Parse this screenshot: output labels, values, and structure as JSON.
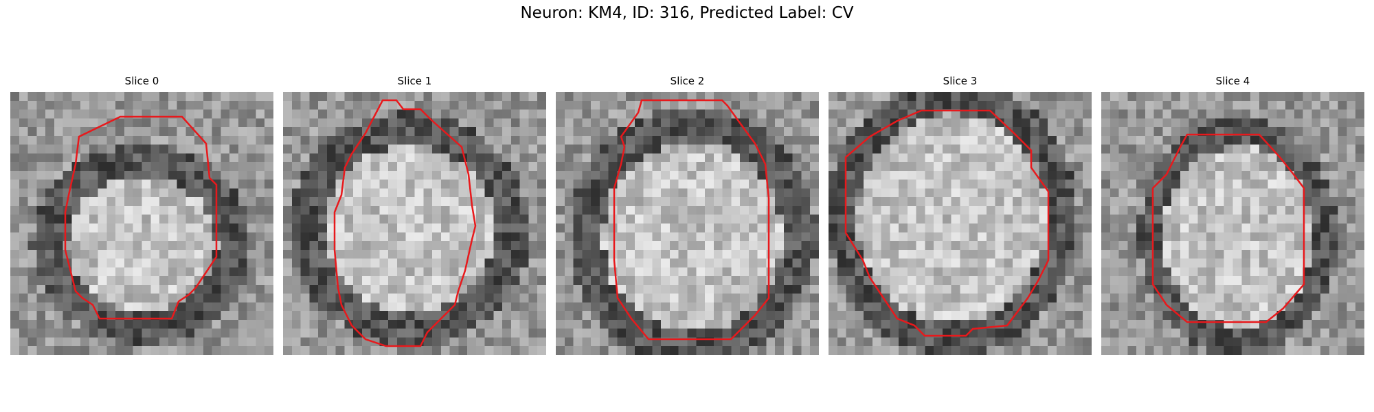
{
  "figure": {
    "title": "Neuron: KM4, ID: 316, Predicted Label: CV"
  },
  "colormap": "gray",
  "outline_color": "#e8191c",
  "panels": [
    {
      "title": "Slice 0"
    },
    {
      "title": "Slice 1"
    },
    {
      "title": "Slice 2"
    },
    {
      "title": "Slice 3"
    },
    {
      "title": "Slice 4"
    }
  ]
}
